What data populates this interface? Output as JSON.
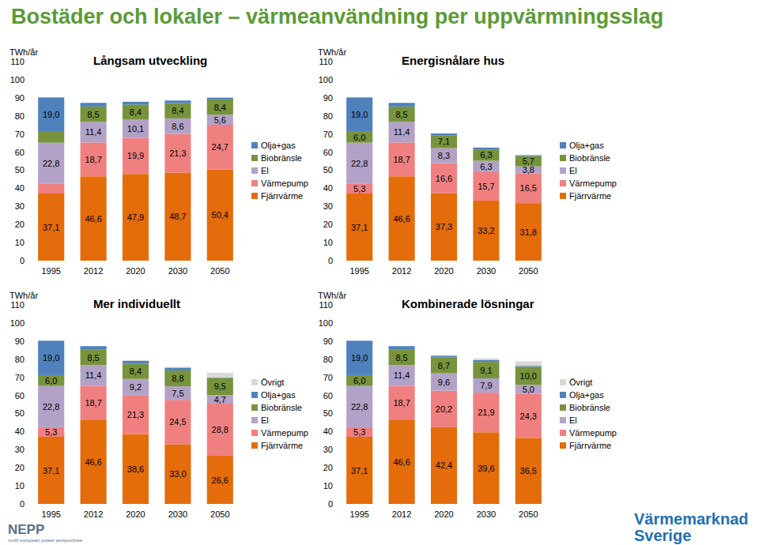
{
  "title": "Bostäder och lokaler – värmeanvändning per uppvärmningsslag",
  "logos": [
    "NEPP",
    "north european power perspectives",
    "Värmemarknad",
    "Sverige"
  ],
  "chart_data": [
    {
      "type": "bar",
      "title": "Långsam utveckling",
      "y_label": "TWh/år",
      "categories": [
        "1995",
        "2012",
        "2020",
        "2030",
        "2050"
      ],
      "ylim": [
        0,
        110
      ],
      "yticks": [
        0,
        10,
        20,
        30,
        40,
        50,
        60,
        70,
        80,
        90,
        100,
        110
      ],
      "stacked": true,
      "data_labels": true,
      "legend": "right",
      "grid": false,
      "series": [
        {
          "name": "Fjärrvärme",
          "color": "#E46C0A",
          "values": [
            37.1,
            46.6,
            47.9,
            48.7,
            50.4
          ],
          "value_labels": [
            "37,1",
            "46,6",
            "47,9",
            "48,7",
            "50,4"
          ]
        },
        {
          "name": "Värmepump",
          "color": "#F08080",
          "values": [
            5.3,
            18.7,
            19.9,
            21.3,
            24.7
          ],
          "value_labels": [
            null,
            "18,7",
            "19,9",
            "21,3",
            "24,7"
          ]
        },
        {
          "name": "El",
          "color": "#B3A2C7",
          "values": [
            22.8,
            11.4,
            10.1,
            8.6,
            5.6
          ],
          "value_labels": [
            "22,8",
            "11,4",
            "10,1",
            "8,6",
            "5,6"
          ]
        },
        {
          "name": "Biobränsle",
          "color": "#77933C",
          "values": [
            6.0,
            8.5,
            8.4,
            8.4,
            8.4
          ],
          "value_labels": [
            null,
            "8,5",
            "8,4",
            "8,4",
            "8,4"
          ]
        },
        {
          "name": "Olja+gas",
          "color": "#4F81BD",
          "values": [
            19.0,
            2.0,
            1.5,
            1.5,
            1.0
          ],
          "value_labels": [
            "19,0",
            null,
            null,
            null,
            null
          ]
        }
      ]
    },
    {
      "type": "bar",
      "title": "Energisnålare hus",
      "y_label": "TWh/år",
      "categories": [
        "1995",
        "2012",
        "2020",
        "2030",
        "2050"
      ],
      "ylim": [
        0,
        110
      ],
      "yticks": [
        0,
        10,
        20,
        30,
        40,
        50,
        60,
        70,
        80,
        90,
        100,
        110
      ],
      "stacked": true,
      "data_labels": true,
      "legend": "right",
      "grid": false,
      "series": [
        {
          "name": "Fjärrvärme",
          "color": "#E46C0A",
          "values": [
            37.1,
            46.6,
            37.3,
            33.2,
            31.8
          ],
          "value_labels": [
            "37,1",
            "46,6",
            "37,3",
            "33,2",
            "31,8"
          ]
        },
        {
          "name": "Värmepump",
          "color": "#F08080",
          "values": [
            5.3,
            18.7,
            16.6,
            15.7,
            16.5
          ],
          "value_labels": [
            "5,3",
            "18,7",
            "16,6",
            "15,7",
            "16,5"
          ]
        },
        {
          "name": "El",
          "color": "#B3A2C7",
          "values": [
            22.8,
            11.4,
            8.3,
            6.3,
            3.8
          ],
          "value_labels": [
            "22,8",
            "11,4",
            "8,3",
            "6,3",
            "3,8"
          ]
        },
        {
          "name": "Biobränsle",
          "color": "#77933C",
          "values": [
            6.0,
            8.5,
            7.1,
            6.3,
            5.7
          ],
          "value_labels": [
            "6,0",
            "8,5",
            "7,1",
            "6,3",
            "5,7"
          ]
        },
        {
          "name": "Olja+gas",
          "color": "#4F81BD",
          "values": [
            19.0,
            2.0,
            1.0,
            1.0,
            0.5
          ],
          "value_labels": [
            "19,0",
            null,
            null,
            null,
            null
          ]
        }
      ]
    },
    {
      "type": "bar",
      "title": "Mer individuellt",
      "y_label": "TWh/år",
      "categories": [
        "1995",
        "2012",
        "2020",
        "2030",
        "2050"
      ],
      "ylim": [
        0,
        110
      ],
      "yticks": [
        0,
        10,
        20,
        30,
        40,
        50,
        60,
        70,
        80,
        90,
        100,
        110
      ],
      "stacked": true,
      "data_labels": true,
      "legend": "right",
      "grid": false,
      "series": [
        {
          "name": "Fjärrvärme",
          "color": "#E46C0A",
          "values": [
            37.1,
            46.6,
            38.6,
            33.0,
            26.6
          ],
          "value_labels": [
            "37,1",
            "46,6",
            "38,6",
            "33,0",
            "26,6"
          ]
        },
        {
          "name": "Värmepump",
          "color": "#F08080",
          "values": [
            5.3,
            18.7,
            21.3,
            24.5,
            28.8
          ],
          "value_labels": [
            "5,3",
            "18,7",
            "21,3",
            "24,5",
            "28,8"
          ]
        },
        {
          "name": "El",
          "color": "#B3A2C7",
          "values": [
            22.8,
            11.4,
            9.2,
            7.5,
            4.7
          ],
          "value_labels": [
            "22,8",
            "11,4",
            "9,2",
            "7,5",
            "4,7"
          ]
        },
        {
          "name": "Biobränsle",
          "color": "#77933C",
          "values": [
            6.0,
            8.5,
            8.4,
            8.8,
            9.5
          ],
          "value_labels": [
            "6,0",
            "8,5",
            "8,4",
            "8,8",
            "9,5"
          ]
        },
        {
          "name": "Olja+gas",
          "color": "#4F81BD",
          "values": [
            19.0,
            2.0,
            1.5,
            1.5,
            0.3
          ],
          "value_labels": [
            "19,0",
            null,
            null,
            null,
            null
          ]
        },
        {
          "name": "Övrigt",
          "color": "#D9D9D9",
          "values": [
            0,
            0,
            0.5,
            0.5,
            2.6
          ],
          "value_labels": [
            null,
            null,
            null,
            null,
            null
          ]
        }
      ]
    },
    {
      "type": "bar",
      "title": "Kombinerade lösningar",
      "y_label": "TWh/år",
      "categories": [
        "1995",
        "2012",
        "2020",
        "2030",
        "2050"
      ],
      "ylim": [
        0,
        110
      ],
      "yticks": [
        0,
        10,
        20,
        30,
        40,
        50,
        60,
        70,
        80,
        90,
        100,
        110
      ],
      "stacked": true,
      "data_labels": true,
      "legend": "right",
      "grid": false,
      "series": [
        {
          "name": "Fjärrvärme",
          "color": "#E46C0A",
          "values": [
            37.1,
            46.6,
            42.4,
            39.6,
            36.5
          ],
          "value_labels": [
            "37,1",
            "46,6",
            "42,4",
            "39,6",
            "36,5"
          ]
        },
        {
          "name": "Värmepump",
          "color": "#F08080",
          "values": [
            5.3,
            18.7,
            20.2,
            21.9,
            24.3
          ],
          "value_labels": [
            "5,3",
            "18,7",
            "20,2",
            "21,9",
            "24,3"
          ]
        },
        {
          "name": "El",
          "color": "#B3A2C7",
          "values": [
            22.8,
            11.4,
            9.6,
            7.9,
            5.0
          ],
          "value_labels": [
            "22,8",
            "11,4",
            "9,6",
            "7,9",
            "5,0"
          ]
        },
        {
          "name": "Biobränsle",
          "color": "#77933C",
          "values": [
            6.0,
            8.5,
            8.7,
            9.1,
            10.0
          ],
          "value_labels": [
            "6,0",
            "8,5",
            "8,7",
            "9,1",
            "10,0"
          ]
        },
        {
          "name": "Olja+gas",
          "color": "#4F81BD",
          "values": [
            19.0,
            2.0,
            1.0,
            1.0,
            0.5
          ],
          "value_labels": [
            "19,0",
            null,
            null,
            null,
            null
          ]
        },
        {
          "name": "Övrigt",
          "color": "#D9D9D9",
          "values": [
            0,
            0,
            0.5,
            1.0,
            2.5
          ],
          "value_labels": [
            null,
            null,
            null,
            null,
            null
          ]
        }
      ]
    }
  ]
}
